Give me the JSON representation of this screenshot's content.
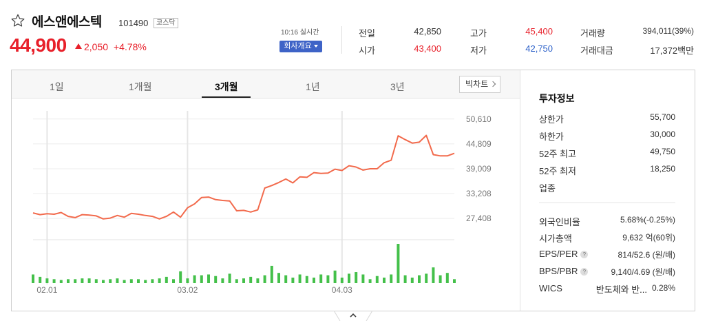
{
  "stock": {
    "name": "에스앤에스텍",
    "code": "101490",
    "market": "코스닥",
    "price": "44,900",
    "change_amount": "2,050",
    "change_pct": "+4.78%"
  },
  "status": {
    "time_label": "10:16 실시간",
    "company_button": "회사개요"
  },
  "quotes": {
    "prev_close": {
      "label": "전일",
      "value": "42,850"
    },
    "open": {
      "label": "시가",
      "value": "43,400"
    },
    "high": {
      "label": "고가",
      "value": "45,400"
    },
    "low": {
      "label": "저가",
      "value": "42,750"
    },
    "volume": {
      "label": "거래량",
      "value": "394,011(39%)"
    },
    "trade_value": {
      "label": "거래대금",
      "value": "17,372백만"
    }
  },
  "tabs": [
    {
      "label": "1일"
    },
    {
      "label": "1개월"
    },
    {
      "label": "3개월"
    },
    {
      "label": "1년"
    },
    {
      "label": "3년"
    }
  ],
  "bigchart_label": "빅차트",
  "chart_data": {
    "type": "line",
    "y_ticks": [
      "50,610",
      "44,809",
      "39,009",
      "33,208",
      "27,408"
    ],
    "y_tick_values": [
      50610,
      44809,
      39009,
      33208,
      27408
    ],
    "x_ticks": [
      "02.01",
      "03.02",
      "04.03"
    ],
    "ylim": [
      25500,
      52500
    ],
    "price": [
      28700,
      28300,
      28500,
      28400,
      28800,
      27900,
      27600,
      28300,
      28200,
      28000,
      27300,
      27500,
      28100,
      27700,
      28600,
      28400,
      28100,
      27900,
      27300,
      27900,
      28900,
      27700,
      29900,
      30800,
      32300,
      32400,
      31800,
      31600,
      31500,
      29200,
      29300,
      28900,
      29400,
      34500,
      35100,
      35800,
      36600,
      35700,
      37100,
      37000,
      38100,
      37900,
      38000,
      38900,
      38600,
      39700,
      39400,
      38700,
      39000,
      39000,
      40400,
      41000,
      46700,
      45800,
      45000,
      45200,
      46800,
      42300,
      42000,
      42000,
      42600
    ],
    "volume_rel": [
      0.22,
      0.16,
      0.12,
      0.1,
      0.08,
      0.1,
      0.1,
      0.12,
      0.12,
      0.1,
      0.08,
      0.1,
      0.12,
      0.08,
      0.1,
      0.1,
      0.08,
      0.1,
      0.12,
      0.16,
      0.1,
      0.3,
      0.12,
      0.2,
      0.2,
      0.22,
      0.18,
      0.12,
      0.24,
      0.1,
      0.12,
      0.16,
      0.12,
      0.2,
      0.44,
      0.26,
      0.2,
      0.14,
      0.22,
      0.18,
      0.14,
      0.22,
      0.2,
      0.32,
      0.14,
      0.24,
      0.28,
      0.22,
      0.1,
      0.18,
      0.14,
      0.22,
      1.0,
      0.2,
      0.14,
      0.2,
      0.24,
      0.4,
      0.2,
      0.26,
      0.1
    ]
  },
  "investment": {
    "title": "투자정보",
    "upper_limit": {
      "label": "상한가",
      "value": "55,700"
    },
    "lower_limit": {
      "label": "하한가",
      "value": "30,000"
    },
    "high_52w": {
      "label": "52주 최고",
      "value": "49,750"
    },
    "low_52w": {
      "label": "52주 최저",
      "value": "18,250"
    },
    "industry": {
      "label": "업종",
      "value": ""
    },
    "foreign_ratio": {
      "label": "외국인비율",
      "value": "5.68%(-0.25%)"
    },
    "market_cap": {
      "label": "시가총액",
      "value": "9,632 억(60위)"
    },
    "eps_per": {
      "label": "EPS/PER",
      "value": "814/52.6 (원/배)"
    },
    "bps_pbr": {
      "label": "BPS/PBR",
      "value": "9,140/4.69 (원/배)"
    },
    "wics": {
      "label": "WICS",
      "value": "반도체와 반...",
      "pct": "0.28%"
    }
  },
  "colors": {
    "up": "#e8202a",
    "down": "#2a5fc8",
    "line": "#f26a4c",
    "volume": "#44c04a",
    "accent": "#3e63c7"
  }
}
